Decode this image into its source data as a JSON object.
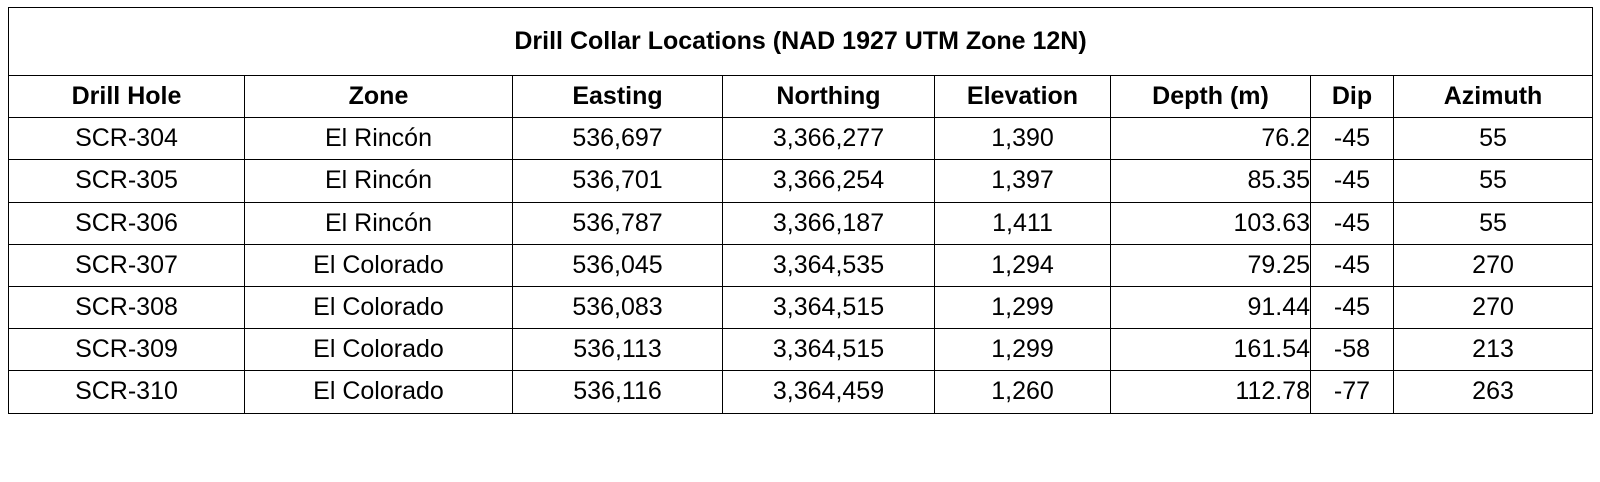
{
  "table": {
    "title": "Drill Collar Locations (NAD 1927 UTM Zone 12N)",
    "headers": {
      "hole": "Drill Hole",
      "zone": "Zone",
      "easting": "Easting",
      "northing": "Northing",
      "elevation": "Elevation",
      "depth": "Depth (m)",
      "dip": "Dip",
      "azimuth": "Azimuth"
    },
    "rows": [
      {
        "hole": "SCR-304",
        "zone": "El Rincón",
        "easting": "536,697",
        "northing": "3,366,277",
        "elevation": "1,390",
        "depth": "76.2",
        "dip": "-45",
        "azimuth": "55"
      },
      {
        "hole": "SCR-305",
        "zone": "El Rincón",
        "easting": "536,701",
        "northing": "3,366,254",
        "elevation": "1,397",
        "depth": "85.35",
        "dip": "-45",
        "azimuth": "55"
      },
      {
        "hole": "SCR-306",
        "zone": "El Rincón",
        "easting": "536,787",
        "northing": "3,366,187",
        "elevation": "1,411",
        "depth": "103.63",
        "dip": "-45",
        "azimuth": "55"
      },
      {
        "hole": "SCR-307",
        "zone": "El Colorado",
        "easting": "536,045",
        "northing": "3,364,535",
        "elevation": "1,294",
        "depth": "79.25",
        "dip": "-45",
        "azimuth": "270"
      },
      {
        "hole": "SCR-308",
        "zone": "El Colorado",
        "easting": "536,083",
        "northing": "3,364,515",
        "elevation": "1,299",
        "depth": "91.44",
        "dip": "-45",
        "azimuth": "270"
      },
      {
        "hole": "SCR-309",
        "zone": "El Colorado",
        "easting": "536,113",
        "northing": "3,364,515",
        "elevation": "1,299",
        "depth": "161.54",
        "dip": "-58",
        "azimuth": "213"
      },
      {
        "hole": "SCR-310",
        "zone": "El Colorado",
        "easting": "536,116",
        "northing": "3,364,459",
        "elevation": "1,260",
        "depth": "112.78",
        "dip": "-77",
        "azimuth": "263"
      }
    ]
  }
}
